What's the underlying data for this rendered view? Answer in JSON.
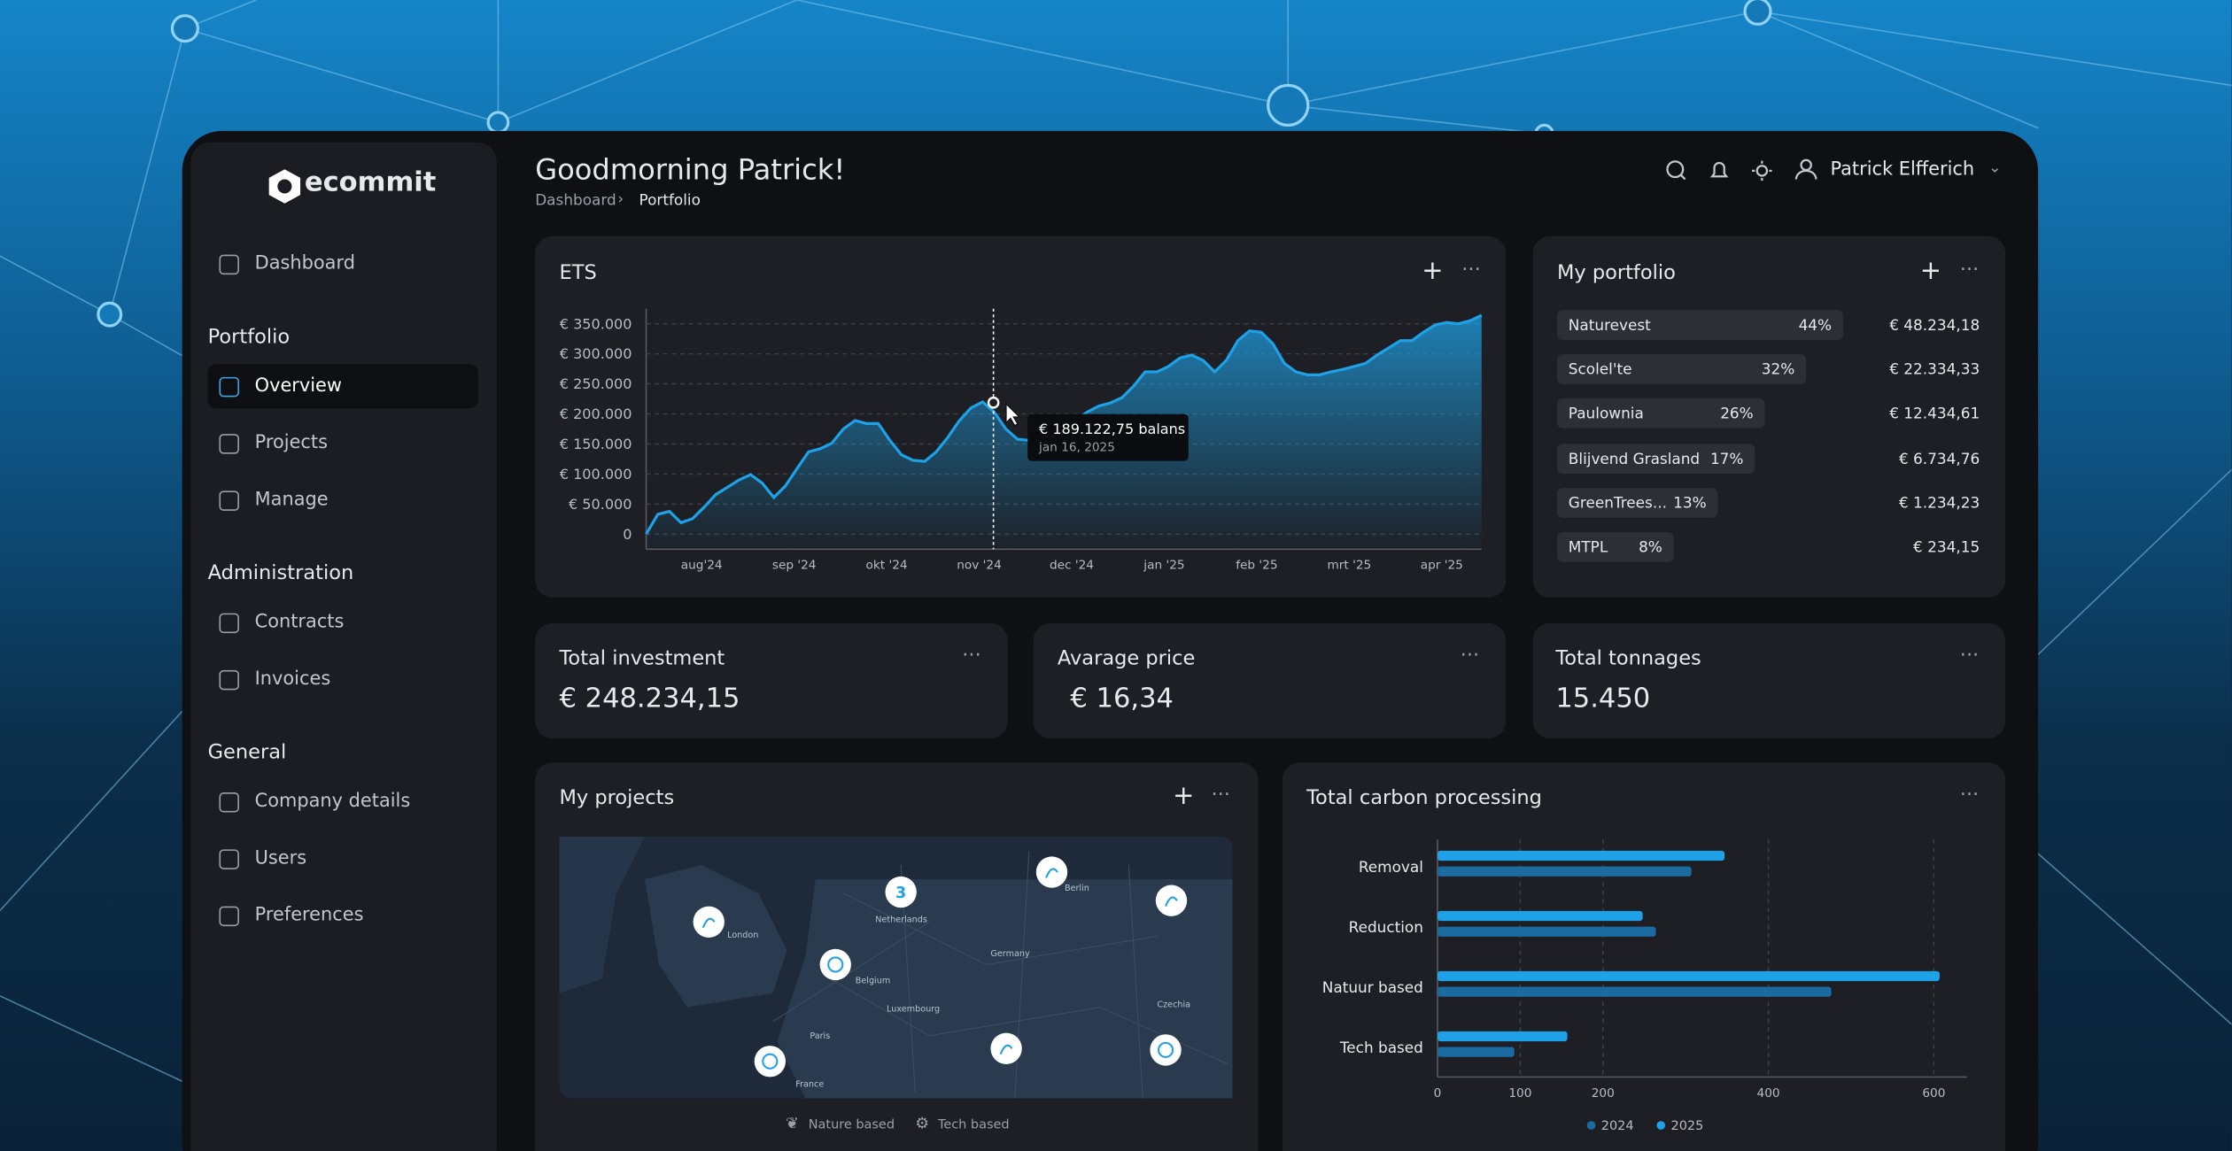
{
  "sidebar": {
    "logo": "ecommit",
    "nav": [
      {
        "section": null,
        "items": [
          "Dashboard"
        ]
      },
      {
        "section": "Portfolio",
        "items": [
          "Overview",
          "Projects",
          "Manage"
        ]
      },
      {
        "section": "Administration",
        "items": [
          "Contracts",
          "Invoices"
        ]
      },
      {
        "section": "General",
        "items": [
          "Company details",
          "Users",
          "Preferences"
        ]
      }
    ]
  },
  "header": {
    "greeting": "Goodmorning Patrick!",
    "breadcrumb": [
      "Dashboard",
      "Portfolio"
    ],
    "user": "Patrick Elfferich"
  },
  "ets": {
    "type": "line",
    "title": "ETS",
    "xticks": [
      "aug'24",
      "sep '24",
      "okt '24",
      "nov '24",
      "dec '24",
      "jan '25",
      "feb '25",
      "mrt '25",
      "apr '25"
    ],
    "values": [
      0,
      33000,
      38000,
      19000,
      26000,
      45000,
      66000,
      78000,
      90000,
      99000,
      85000,
      61000,
      80000,
      109000,
      137000,
      142000,
      151000,
      175000,
      189000,
      184000,
      184000,
      156000,
      132000,
      123000,
      121000,
      137000,
      161000,
      189000,
      210000,
      220000,
      203000,
      175000,
      158000,
      156000,
      166000,
      180000,
      180000,
      189000,
      203000,
      213000,
      218000,
      227000,
      246000,
      270000,
      270000,
      279000,
      293000,
      298000,
      289000,
      270000,
      289000,
      322000,
      338000,
      336000,
      317000,
      284000,
      270000,
      265000,
      265000,
      270000,
      274000,
      279000,
      284000,
      298000,
      310000,
      322000,
      322000,
      336000,
      348000,
      352000,
      350000,
      355000,
      364000
    ],
    "color": "#1ea1e6",
    "ylim": [
      -25000,
      375000
    ],
    "yticks": [
      0,
      {
        "value": 50000,
        "label": "€ 50.000"
      },
      {
        "value": 100000,
        "label": "€ 100.000"
      },
      {
        "value": 150000,
        "label": "€ 150.000"
      },
      {
        "value": 200000,
        "label": "€ 200.000"
      },
      {
        "value": 250000,
        "label": "€ 250.000"
      },
      {
        "value": 300000,
        "label": "€ 300.000"
      },
      {
        "value": 350000,
        "label": "€ 350.000"
      }
    ],
    "grid": true,
    "tooltip": {
      "value": "€ 189.122,75 balans",
      "date": "jan 16, 2025"
    }
  },
  "portfolio": {
    "title": "My portfolio",
    "rows": [
      {
        "name": "Naturevest",
        "pct": "44%",
        "amount": "€ 48.234,18"
      },
      {
        "name": "Scolel'te",
        "pct": "32%",
        "amount": "€ 22.334,33"
      },
      {
        "name": "Paulownia",
        "pct": "26%",
        "amount": "€ 12.434,61"
      },
      {
        "name": "Blijvend Grasland",
        "pct": "17%",
        "amount": "€ 6.734,76"
      },
      {
        "name": "GreenTrees...",
        "pct": "13%",
        "amount": "€ 1.234,23"
      },
      {
        "name": "MTPL",
        "pct": "8%",
        "amount": "€ 234,15"
      }
    ]
  },
  "stats": [
    {
      "label": "Total investment",
      "value": "€ 248.234,15"
    },
    {
      "label": "Avarage price",
      "value": "€ 16,34"
    },
    {
      "label": "Total tonnages",
      "value": "15.450"
    }
  ],
  "projects": {
    "title": "My projects",
    "cluster": "3",
    "labels": [
      "London",
      "Netherlands",
      "Germany",
      "Berlin",
      "Belgium",
      "Luxembourg",
      "Paris",
      "France",
      "Czechia"
    ],
    "legend": [
      "Nature based",
      "Tech based"
    ]
  },
  "carbon": {
    "type": "bar",
    "orientation": "horizontal",
    "title": "Total carbon processing",
    "categories": [
      "Removal",
      "Reduction",
      "Natuur based",
      "Tech based"
    ],
    "series": [
      {
        "name": "2024",
        "color": "#1b6aa0",
        "values": [
          307,
          264,
          476,
          93
        ]
      },
      {
        "name": "2025",
        "color": "#1ea1e6",
        "values": [
          347,
          248,
          607,
          157
        ]
      }
    ],
    "xlim": [
      0,
      640
    ],
    "xticks": [
      0,
      100,
      200,
      400,
      600
    ],
    "grid": true
  }
}
